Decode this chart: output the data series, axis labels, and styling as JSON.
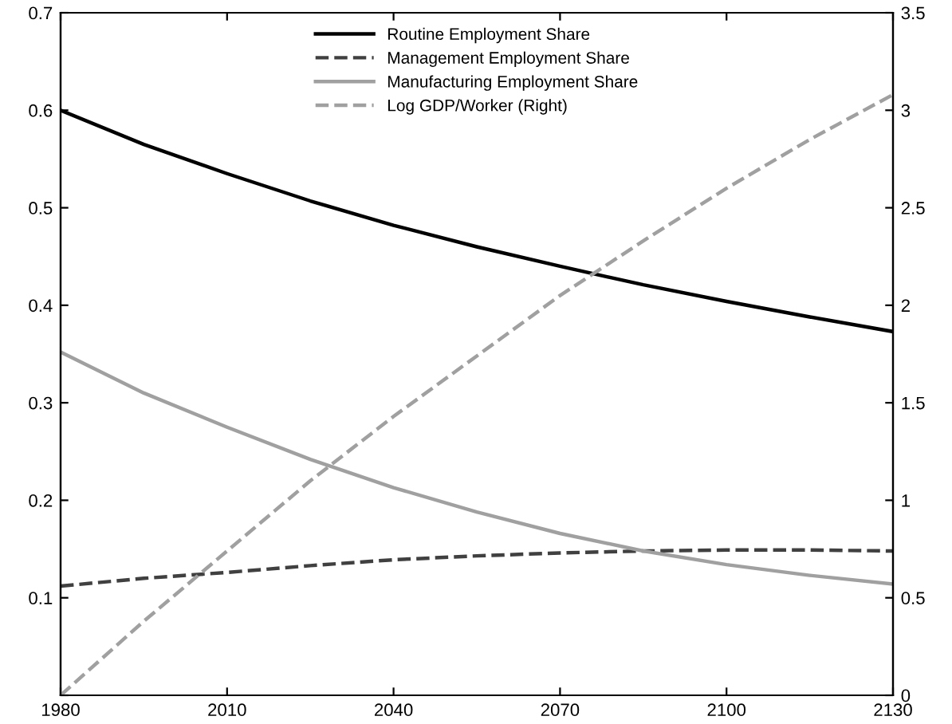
{
  "chart_data": {
    "type": "line",
    "x": [
      1980,
      1995,
      2010,
      2025,
      2040,
      2055,
      2070,
      2085,
      2100,
      2115,
      2130
    ],
    "series": [
      {
        "name": "Routine Employment Share",
        "color": "#000000",
        "line_style": "solid",
        "values": [
          0.6,
          0.565,
          0.535,
          0.507,
          0.482,
          0.46,
          0.44,
          0.421,
          0.404,
          0.388,
          0.373
        ]
      },
      {
        "name": "Management Employment Share",
        "color": "#404040",
        "line_style": "dashed",
        "values": [
          0.112,
          0.12,
          0.126,
          0.133,
          0.139,
          0.143,
          0.146,
          0.148,
          0.149,
          0.149,
          0.148
        ]
      },
      {
        "name": "Manufacturing Employment Share",
        "color": "#a0a0a0",
        "line_style": "solid",
        "values": [
          0.352,
          0.31,
          0.275,
          0.242,
          0.213,
          0.188,
          0.166,
          0.148,
          0.134,
          0.123,
          0.114
        ]
      },
      {
        "name": "Log GDP/Worker (Right)",
        "color": "#a0a0a0",
        "line_style": "dashed",
        "axis": "y2",
        "values": [
          0,
          0.38,
          0.74,
          1.1,
          1.43,
          1.74,
          2.05,
          2.33,
          2.6,
          2.85,
          3.08
        ]
      }
    ],
    "xlim": [
      1980,
      2130
    ],
    "xticks": [
      1980,
      2010,
      2040,
      2070,
      2100,
      2130
    ],
    "ylim": [
      0,
      0.7
    ],
    "yticks": [
      {
        "value": 0,
        "label": null
      },
      0.1,
      0.2,
      0.3,
      0.4,
      0.5,
      0.6,
      0.7
    ],
    "y2lim": [
      0,
      3.5
    ],
    "y2ticks": [
      0,
      0.5,
      1,
      1.5,
      2,
      2.5,
      3,
      3.5
    ],
    "grid": false,
    "legend": "top"
  }
}
